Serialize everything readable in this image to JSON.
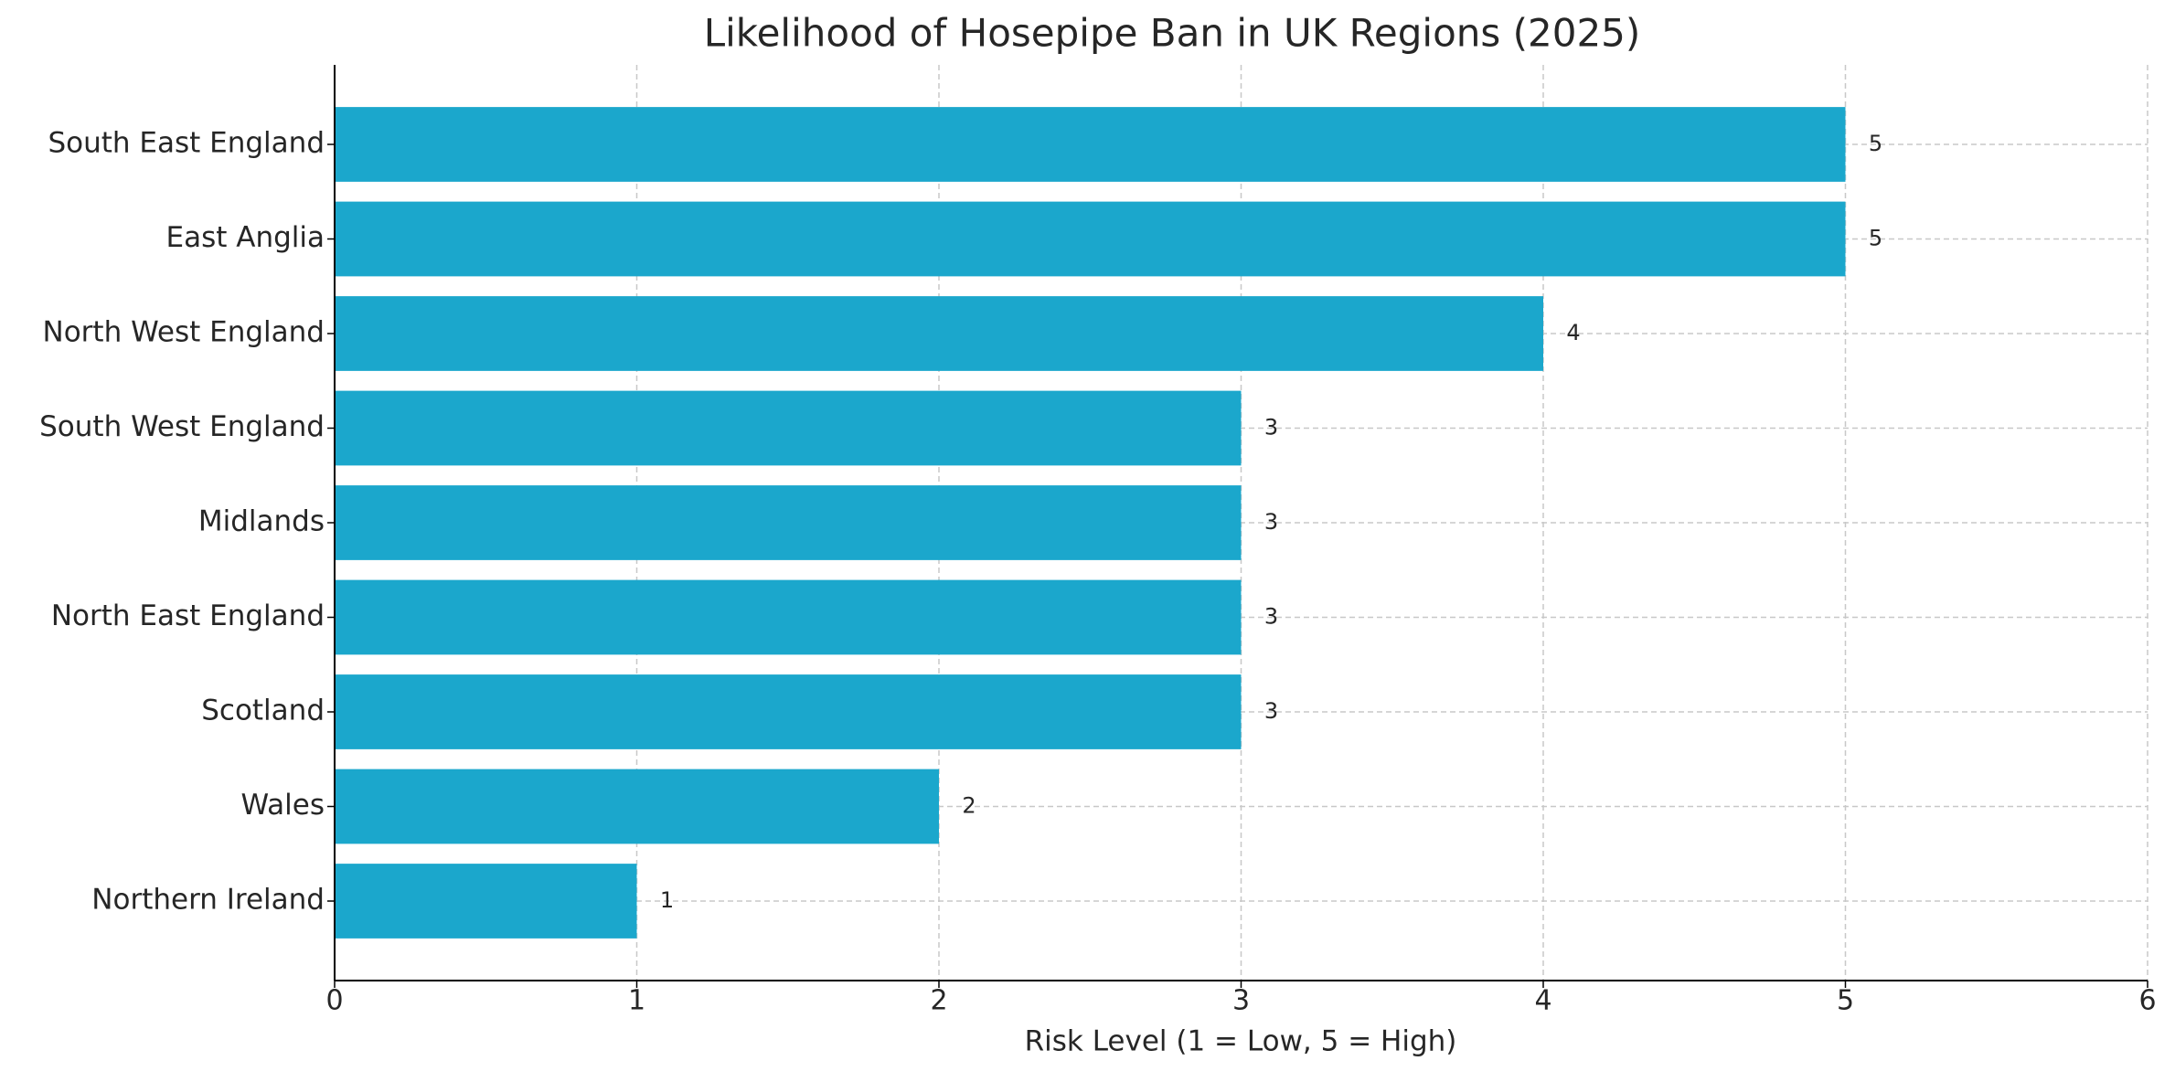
{
  "chart_data": {
    "type": "barh",
    "title": "Likelihood of Hosepipe Ban in UK Regions (2025)",
    "x_label": "Risk Level (1 = Low, 5 = High)",
    "categories": [
      "South East England",
      "East Anglia",
      "North West England",
      "South West England",
      "Midlands",
      "North East England",
      "Scotland",
      "Wales",
      "Northern Ireland"
    ],
    "values": [
      5,
      5,
      4,
      3,
      3,
      3,
      3,
      2,
      1
    ],
    "color": "#1ba7cc",
    "xlim": [
      0,
      6
    ],
    "xticks": [
      0,
      1,
      2,
      3,
      4,
      5,
      6
    ],
    "grid": true
  }
}
